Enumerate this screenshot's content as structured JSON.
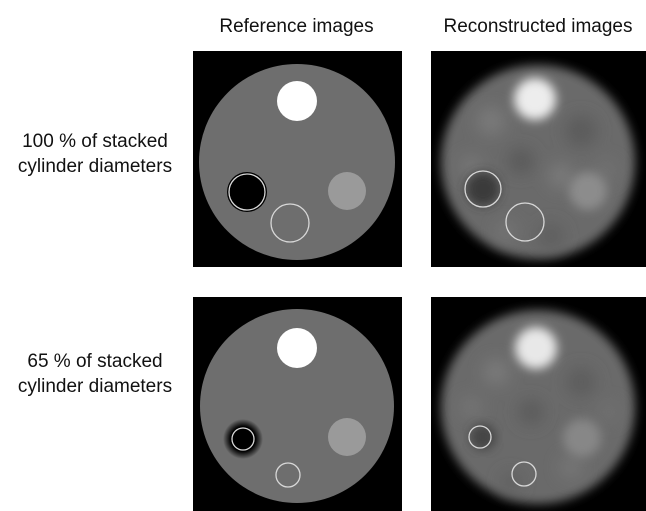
{
  "headers": {
    "reference": "Reference images",
    "reconstructed": "Reconstructed images"
  },
  "rows": [
    {
      "label_line1": "100 % of stacked",
      "label_line2": "cylinder diameters"
    },
    {
      "label_line1": "65 % of stacked",
      "label_line2": "cylinder diameters"
    }
  ],
  "colors": {
    "panel_background": "#000000",
    "phantom_gray": "#6e6e6e",
    "hot_insert": "#ffffff",
    "warm_insert": "#9a9a9a",
    "cold_insert": "#000000",
    "roi_outline": "#d8d8d8"
  }
}
